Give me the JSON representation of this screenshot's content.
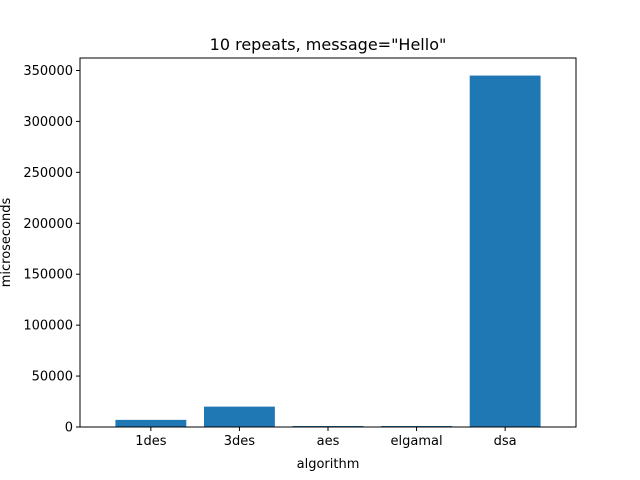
{
  "chart_data": {
    "type": "bar",
    "title": "10 repeats, message=\"Hello\"",
    "xlabel": "algorithm",
    "ylabel": "microseconds",
    "categories": [
      "1des",
      "3des",
      "aes",
      "elgamal",
      "dsa"
    ],
    "values": [
      7000,
      20000,
      1000,
      1000,
      345000
    ],
    "ylim": [
      0,
      362250
    ],
    "yticks": [
      0,
      50000,
      100000,
      150000,
      200000,
      250000,
      300000,
      350000
    ],
    "ytick_labels": [
      "0",
      "50000",
      "100000",
      "150000",
      "200000",
      "250000",
      "300000",
      "350000"
    ],
    "bar_color": "#1f77b4",
    "grid": false
  }
}
